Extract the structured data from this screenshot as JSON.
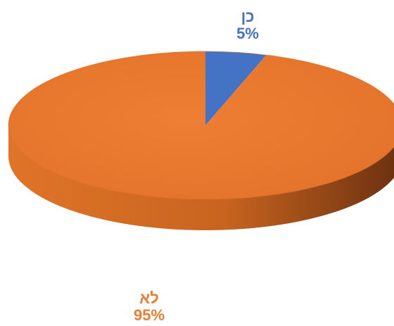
{
  "chart_data": {
    "type": "pie",
    "title": "",
    "slices": [
      {
        "label": "כן",
        "percent_label": "5%",
        "value": 5,
        "color": "#4472C4",
        "side_color": "#2E5597"
      },
      {
        "label": "לא",
        "percent_label": "95%",
        "value": 95,
        "color": "#ED7D31",
        "side_color": "#B8561A"
      }
    ],
    "three_d": true,
    "legend": "none"
  }
}
